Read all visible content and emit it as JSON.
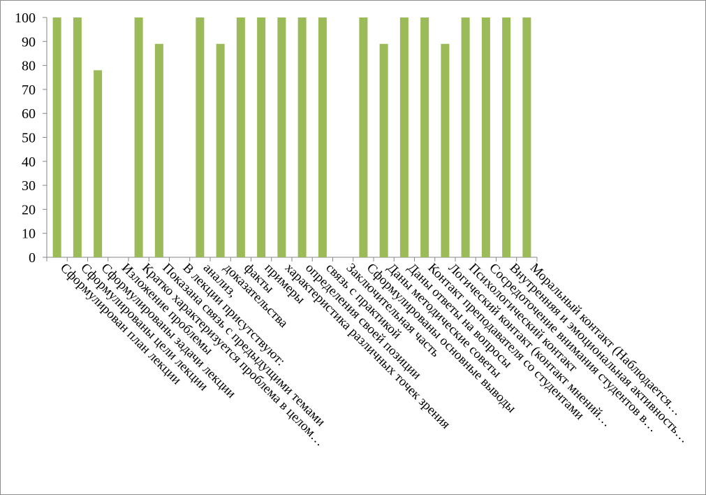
{
  "chart_data": {
    "type": "bar",
    "title": "",
    "xlabel": "",
    "ylabel": "",
    "ylim": [
      0,
      100
    ],
    "y_ticks": [
      0,
      10,
      20,
      30,
      40,
      50,
      60,
      70,
      80,
      90,
      100
    ],
    "grid": false,
    "legend": "none",
    "bar_color": "#9bbb59",
    "categories": [
      "Сформулирован план лекции",
      "Сформулированы цели лекции",
      "Сформулированы задачи лекции",
      "Изложение проблемы",
      "Кратко характеризуется проблема в целом…",
      "Показана связь с предыдущими темами",
      "В лекции присутствуют:",
      "анализ,",
      "доказательства",
      "факты",
      "примеры",
      "характеристика различных точек зрения",
      "определения своей позиции",
      "связь с практикой",
      "Заключительная часть",
      "Сформулированы основные выводы",
      "Даны методические советы",
      "Даны ответы на вопросы",
      "Контакт преподавателя со студентами",
      "Логический контакт (контакт мнений…",
      "Психологический контакт",
      "Сосредоточение внимания студентов в…",
      "Внутренняя и эмоциональная активность…",
      "Моральный контакт (Наблюдается…"
    ],
    "values": [
      100,
      100,
      78,
      0,
      100,
      89,
      0,
      100,
      89,
      100,
      100,
      100,
      100,
      100,
      0,
      100,
      89,
      100,
      100,
      89,
      100,
      100,
      100,
      100
    ]
  }
}
